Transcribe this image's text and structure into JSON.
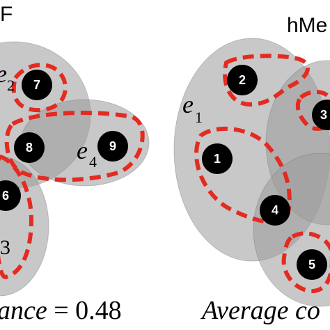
{
  "left_panel": {
    "title_fragment": "F",
    "edge_labels": [
      {
        "name": "e",
        "sub": "2"
      },
      {
        "name": "e",
        "sub": "4"
      },
      {
        "name": "",
        "sub": "3"
      }
    ],
    "nodes": [
      "7",
      "8",
      "9",
      "6"
    ],
    "caption_italic": "ance",
    "caption_rest": " = 0.48"
  },
  "right_panel": {
    "title_fragment": "hMe",
    "edge_labels": [
      {
        "name": "e",
        "sub": "1"
      }
    ],
    "nodes": [
      "2",
      "1",
      "3",
      "4",
      "5"
    ],
    "caption_italic": "Average co"
  },
  "colors": {
    "hyperedge_fill": "#9a9a9a",
    "partition_dash": "#e32b22",
    "node_fill": "#000000"
  }
}
